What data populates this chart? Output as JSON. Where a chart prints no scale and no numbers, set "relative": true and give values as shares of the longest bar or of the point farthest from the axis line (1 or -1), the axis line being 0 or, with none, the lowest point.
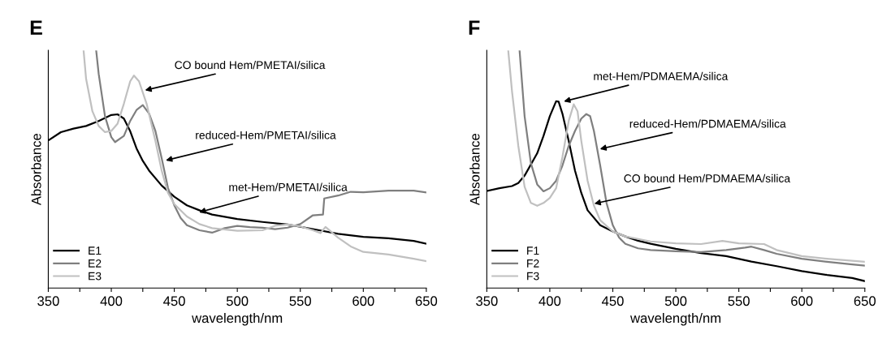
{
  "chart_data": [
    {
      "type": "line",
      "title": "E",
      "xlabel": "wavelength/nm",
      "ylabel": "Absorbance",
      "relative": true,
      "legend": "bottom left",
      "xlim": [
        350,
        650
      ],
      "xticks": [
        350,
        {
          "value": 375,
          "label": null
        },
        400,
        {
          "value": 425,
          "label": null
        },
        450,
        {
          "value": 475,
          "label": null
        },
        500,
        {
          "value": 525,
          "label": null
        },
        550,
        {
          "value": 575,
          "label": null
        },
        600,
        {
          "value": 625,
          "label": null
        },
        650
      ],
      "series": [
        {
          "name": "E1",
          "color": "#000000",
          "x": [
            350,
            360,
            370,
            380,
            390,
            400,
            405,
            410,
            415,
            420,
            425,
            430,
            440,
            450,
            460,
            470,
            480,
            500,
            520,
            540,
            560,
            580,
            600,
            620,
            640,
            650
          ],
          "values": [
            0.621,
            0.656,
            0.671,
            0.682,
            0.703,
            0.728,
            0.731,
            0.713,
            0.66,
            0.588,
            0.535,
            0.494,
            0.431,
            0.384,
            0.348,
            0.327,
            0.309,
            0.29,
            0.278,
            0.267,
            0.248,
            0.228,
            0.215,
            0.209,
            0.198,
            0.186
          ]
        },
        {
          "name": "E2",
          "color": "#7f7f7f",
          "x": [
            388,
            390,
            395,
            400,
            403,
            410,
            415,
            420,
            425,
            430,
            435,
            440,
            445,
            450,
            455,
            460,
            470,
            480,
            490,
            500,
            510,
            520,
            530,
            540,
            550,
            560,
            568,
            569,
            580,
            590,
            600,
            620,
            640,
            650
          ],
          "values": [
            1.0,
            0.901,
            0.723,
            0.635,
            0.614,
            0.64,
            0.703,
            0.749,
            0.77,
            0.734,
            0.661,
            0.546,
            0.421,
            0.348,
            0.295,
            0.264,
            0.243,
            0.233,
            0.252,
            0.261,
            0.256,
            0.254,
            0.248,
            0.254,
            0.269,
            0.306,
            0.309,
            0.377,
            0.389,
            0.405,
            0.403,
            0.41,
            0.41,
            0.402
          ]
        },
        {
          "name": "E3",
          "color": "#c0c0c0",
          "x": [
            378,
            380,
            385,
            390,
            395,
            400,
            405,
            410,
            415,
            418,
            422,
            428,
            435,
            440,
            445,
            450,
            460,
            470,
            480,
            500,
            520,
            530,
            540,
            550,
            560,
            566,
            570,
            580,
            590,
            600,
            620,
            640,
            650
          ],
          "values": [
            1.0,
            0.88,
            0.744,
            0.682,
            0.656,
            0.661,
            0.692,
            0.776,
            0.87,
            0.894,
            0.87,
            0.776,
            0.619,
            0.494,
            0.4,
            0.353,
            0.301,
            0.269,
            0.252,
            0.241,
            0.243,
            0.262,
            0.267,
            0.259,
            0.243,
            0.231,
            0.257,
            0.212,
            0.175,
            0.152,
            0.141,
            0.123,
            0.113
          ]
        }
      ],
      "annotations": [
        {
          "text": "CO bound Hem/PMETAI/silica",
          "x": 425,
          "y": 0.83
        },
        {
          "text": "reduced-Hem/PMETAI/silica",
          "x": 441.5,
          "y": 0.535
        },
        {
          "text": "met-Hem/PMETAI/silica",
          "x": 468,
          "y": 0.316
        }
      ]
    },
    {
      "type": "line",
      "title": "F",
      "xlabel": "wavelength/nm",
      "ylabel": "Absorbance",
      "relative": true,
      "legend": "bottom left",
      "xlim": [
        350,
        650
      ],
      "xticks": [
        350,
        {
          "value": 375,
          "label": null
        },
        400,
        {
          "value": 425,
          "label": null
        },
        450,
        {
          "value": 475,
          "label": null
        },
        500,
        {
          "value": 525,
          "label": null
        },
        550,
        {
          "value": 575,
          "label": null
        },
        600,
        {
          "value": 625,
          "label": null
        },
        650
      ],
      "series": [
        {
          "name": "F1",
          "color": "#000000",
          "x": [
            350,
            360,
            370,
            375,
            380,
            390,
            395,
            400,
            405,
            407,
            410,
            415,
            420,
            425,
            430,
            440,
            450,
            460,
            470,
            480,
            500,
            520,
            540,
            560,
            580,
            600,
            620,
            640,
            650
          ],
          "values": [
            0.408,
            0.42,
            0.429,
            0.442,
            0.473,
            0.567,
            0.64,
            0.723,
            0.786,
            0.784,
            0.734,
            0.619,
            0.494,
            0.4,
            0.327,
            0.264,
            0.238,
            0.217,
            0.199,
            0.186,
            0.165,
            0.147,
            0.134,
            0.111,
            0.092,
            0.071,
            0.055,
            0.042,
            0.029
          ]
        },
        {
          "name": "F2",
          "color": "#7f7f7f",
          "x": [
            376,
            380,
            385,
            390,
            395,
            400,
            405,
            410,
            415,
            420,
            425,
            429,
            432,
            435,
            440,
            445,
            450,
            455,
            460,
            470,
            480,
            500,
            520,
            540,
            555,
            560,
            570,
            580,
            600,
            620,
            640,
            650
          ],
          "values": [
            1.0,
            0.723,
            0.525,
            0.436,
            0.407,
            0.42,
            0.451,
            0.515,
            0.598,
            0.661,
            0.713,
            0.732,
            0.723,
            0.661,
            0.515,
            0.358,
            0.264,
            0.212,
            0.186,
            0.167,
            0.16,
            0.155,
            0.151,
            0.16,
            0.17,
            0.174,
            0.16,
            0.144,
            0.123,
            0.11,
            0.099,
            0.094
          ]
        },
        {
          "name": "F3",
          "color": "#c0c0c0",
          "x": [
            367,
            370,
            375,
            380,
            385,
            390,
            395,
            400,
            405,
            410,
            415,
            419,
            422,
            425,
            430,
            435,
            440,
            450,
            460,
            480,
            500,
            520,
            537,
            550,
            570,
            580,
            600,
            620,
            650
          ],
          "values": [
            1.0,
            0.828,
            0.598,
            0.426,
            0.358,
            0.346,
            0.358,
            0.379,
            0.42,
            0.551,
            0.703,
            0.773,
            0.744,
            0.619,
            0.451,
            0.347,
            0.285,
            0.238,
            0.217,
            0.196,
            0.188,
            0.185,
            0.198,
            0.188,
            0.185,
            0.16,
            0.134,
            0.123,
            0.11
          ]
        }
      ],
      "annotations": [
        {
          "text": "met-Hem/PDMAEMA/silica",
          "x": 409.4,
          "y": 0.783
        },
        {
          "text": "reduced-Hem/PDMAEMA/silica",
          "x": 438,
          "y": 0.583
        },
        {
          "text": "CO bound Hem/PDMAEMA/silica",
          "x": 433.5,
          "y": 0.353
        }
      ]
    }
  ]
}
